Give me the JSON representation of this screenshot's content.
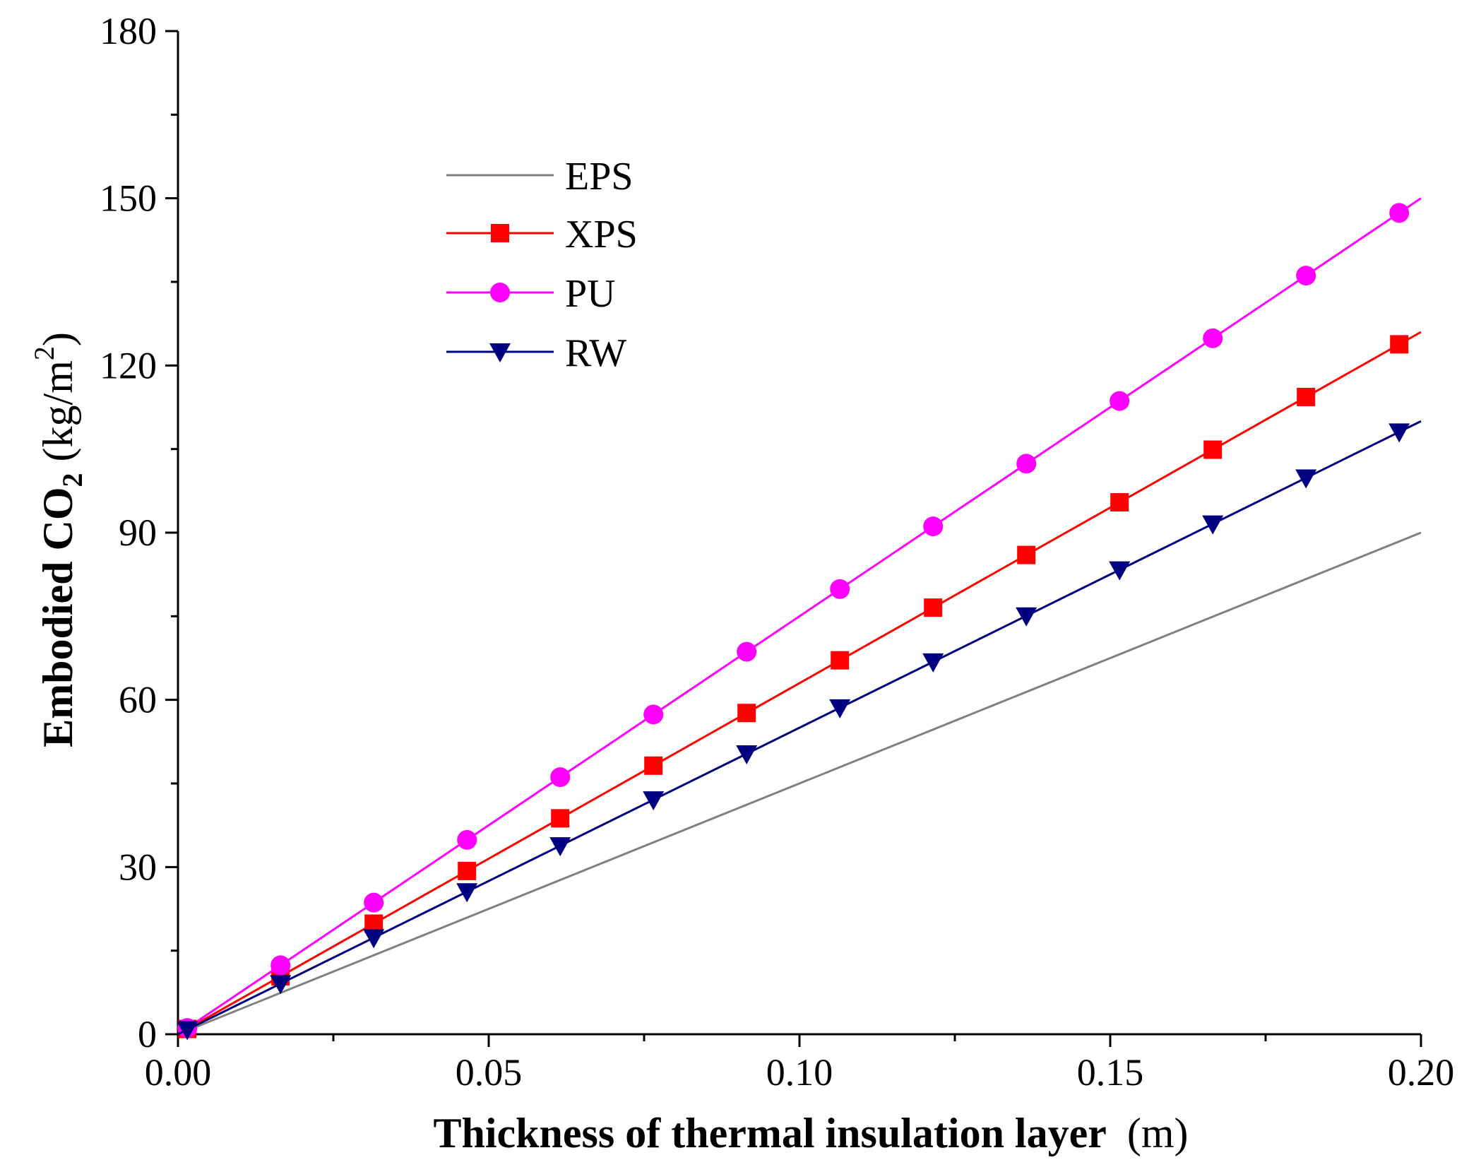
{
  "chart_data": {
    "type": "line",
    "title": "",
    "xlabel": "Thickness of thermal insulation layer",
    "xlabel_unit": "(m)",
    "ylabel": {
      "prefix": "Embodied CO",
      "subscript": "2",
      "unit_open": "(kg/m",
      "superscript": "2",
      "unit_close": ")"
    },
    "xlim": [
      0,
      0.2
    ],
    "ylim": [
      0,
      180
    ],
    "x_ticks": [
      0,
      0.05,
      0.1,
      0.15,
      0.2
    ],
    "x_tick_labels": [
      "0.00",
      "0.05",
      "0.10",
      "0.15",
      "0.20"
    ],
    "y_ticks": [
      0,
      30,
      60,
      90,
      120,
      150,
      180
    ],
    "y_tick_labels": [
      "0",
      "30",
      "60",
      "90",
      "120",
      "150",
      "180"
    ],
    "grid": false,
    "legend_position": "upper-left",
    "series": [
      {
        "name": "EPS",
        "color": "#808080",
        "marker": "none",
        "slope": 450,
        "x_range": [
          0,
          0.2
        ],
        "marker_x": []
      },
      {
        "name": "XPS",
        "color": "#ff0000",
        "marker": "square",
        "slope": 630,
        "x_range": [
          0,
          0.2
        ],
        "marker_x": [
          0.0015,
          0.0165,
          0.0315,
          0.0465,
          0.0615,
          0.0765,
          0.0915,
          0.1065,
          0.1215,
          0.1365,
          0.1515,
          0.1665,
          0.1815,
          0.1965
        ]
      },
      {
        "name": "PU",
        "color": "#ff00ff",
        "marker": "circle",
        "slope": 750,
        "x_range": [
          0,
          0.2
        ],
        "marker_x": [
          0.0015,
          0.0165,
          0.0315,
          0.0465,
          0.0615,
          0.0765,
          0.0915,
          0.1065,
          0.1215,
          0.1365,
          0.1515,
          0.1665,
          0.1815,
          0.1965
        ]
      },
      {
        "name": "RW",
        "color": "#000080",
        "marker": "triangle-down",
        "slope": 550,
        "x_range": [
          0,
          0.2
        ],
        "marker_x": [
          0.0015,
          0.0165,
          0.0315,
          0.0465,
          0.0615,
          0.0765,
          0.0915,
          0.1065,
          0.1215,
          0.1365,
          0.1515,
          0.1665,
          0.1815,
          0.1965
        ]
      }
    ]
  }
}
